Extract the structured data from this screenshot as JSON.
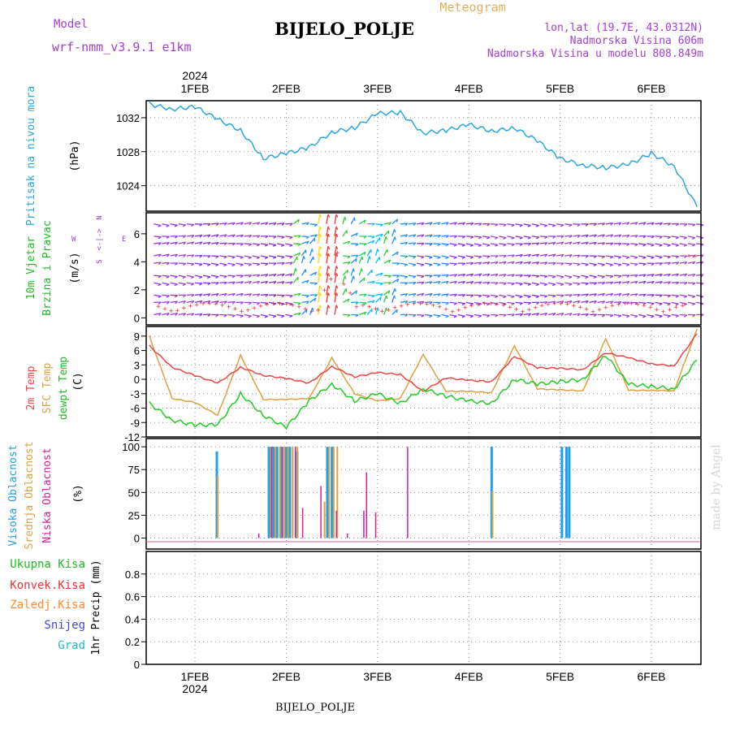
{
  "header": {
    "model_label": "Model",
    "model_name": "wrf-nmm_v3.9.1  e1km",
    "meteogram_label": "Meteogram",
    "station": "BIJELO_POLJE",
    "coords": "lon,lat (19.7E, 43.0312N)",
    "altitude": "Nadmorska Visina 606m",
    "model_altitude": "Nadmorska Visina u modelu 808.849m",
    "watermark": "made by Angel",
    "footer_station": "BIJELO_POLJE"
  },
  "colors": {
    "pressure": "#29a8e0",
    "temp2m": "#ee4444",
    "sfc": "#dfa040",
    "dewpt": "#22cc22",
    "high_cloud": "#20a0e8",
    "mid_cloud": "#dfa040",
    "low_cloud": "#d0209a",
    "purple": "#a040d0",
    "total": "#22bb22",
    "conv": "#ee3333",
    "frozen": "#ff8833",
    "snow": "#4444dd",
    "grad": "#22bbbb"
  },
  "time_axis": {
    "year_label": "2024",
    "day_labels": [
      "1FEB",
      "2FEB",
      "3FEB",
      "4FEB",
      "5FEB",
      "6FEB"
    ]
  },
  "panels": {
    "pressure": {
      "title": "Pritisak na nivou mora",
      "unit": "(hPa)",
      "ticks": [
        "1032",
        "1028",
        "1024"
      ]
    },
    "wind": {
      "title1": "10m Vjetar",
      "title2": "Brzina i Pravac",
      "unit": "(m/s)",
      "compass_n": "N",
      "compass_s": "S",
      "compass_w": "W",
      "compass_e": "E",
      "compass_core": "<-|->",
      "ticks": [
        "6",
        "4",
        "2",
        "0"
      ]
    },
    "temperature": {
      "title_2m": "2m Temp",
      "title_sfc": "SFC Temp",
      "title_dew": "dewpt Temp",
      "unit": "(C)",
      "ticks": [
        "9",
        "6",
        "3",
        "0",
        "-3",
        "-6",
        "-9",
        "-12"
      ]
    },
    "clouds": {
      "title_high": "Visoka Oblacnost",
      "title_mid": "Srednja Oblacnost",
      "title_low": "Niska Oblacnost",
      "unit": "(%)",
      "ticks": [
        "100",
        "75",
        "50",
        "25",
        "0"
      ]
    },
    "precip": {
      "legend_total": "Ukupna Kisa",
      "legend_conv": "Konvek.Kisa",
      "legend_frozen": "Zaledj.Kisa",
      "legend_snow": "Snijeg",
      "legend_grad": "Grad",
      "unit": "1hr Precip (mm)",
      "ticks": [
        "0.8",
        "0.6",
        "0.4",
        "0.2",
        "0"
      ]
    }
  },
  "chart_data": [
    {
      "type": "line",
      "panel": "pressure",
      "x": [
        0.5,
        0.75,
        1.0,
        1.25,
        1.5,
        1.75,
        2.0,
        2.25,
        2.5,
        2.75,
        3.0,
        3.25,
        3.5,
        3.75,
        4.0,
        4.25,
        4.5,
        4.75,
        5.0,
        5.25,
        5.5,
        5.75,
        6.0,
        6.25,
        6.5
      ],
      "ylim": [
        1021,
        1034
      ],
      "series": [
        {
          "values": [
            1033.6,
            1033.0,
            1033.3,
            1031.8,
            1030.5,
            1027.2,
            1027.8,
            1028.5,
            1030.3,
            1030.8,
            1032.5,
            1032.6,
            1030.2,
            1030.5,
            1031.2,
            1030.4,
            1030.8,
            1029.3,
            1027.2,
            1026.4,
            1026.1,
            1026.5,
            1027.8,
            1026.3,
            1021.5
          ]
        }
      ]
    },
    {
      "type": "line",
      "panel": "temperature",
      "x": [
        0.5,
        0.75,
        1.0,
        1.25,
        1.5,
        1.75,
        2.0,
        2.25,
        2.5,
        2.75,
        3.0,
        3.25,
        3.5,
        3.75,
        4.0,
        4.25,
        4.5,
        4.75,
        5.0,
        5.25,
        5.5,
        5.75,
        6.0,
        6.25,
        6.5
      ],
      "ylim": [
        -12,
        11
      ],
      "series": [
        {
          "name": "2m Temp",
          "values": [
            7,
            2.5,
            0.8,
            -0.8,
            2.5,
            0.8,
            0.2,
            -0.8,
            2.7,
            0.5,
            1.4,
            1.0,
            -2.5,
            0.3,
            -0.2,
            -0.5,
            4.8,
            2.4,
            2.3,
            2.0,
            5.5,
            4.5,
            3.2,
            2.8,
            9.5
          ]
        },
        {
          "name": "SFC Temp",
          "values": [
            9,
            -4.0,
            -4.8,
            -7.5,
            5.0,
            -4.2,
            -4.2,
            -4.0,
            4.5,
            -3.0,
            -4.5,
            -4.0,
            5.2,
            -2.5,
            -2.5,
            -2.8,
            7.0,
            -2.0,
            -2.2,
            -2.4,
            8.5,
            -2.3,
            -2.3,
            -2.4,
            10.5
          ]
        },
        {
          "name": "dewpt Temp",
          "values": [
            -5,
            -8.5,
            -9.5,
            -9.5,
            -3.0,
            -7.5,
            -10.0,
            -4.5,
            -1.0,
            -4.5,
            -3.0,
            -5.0,
            -2.0,
            -3.5,
            -4.5,
            -5.0,
            0.0,
            -1.0,
            -0.5,
            0.0,
            5.0,
            -1.0,
            -1.5,
            -2.0,
            4.0
          ]
        }
      ]
    },
    {
      "type": "bar",
      "panel": "clouds",
      "ylim": [
        0,
        100
      ],
      "series": [
        {
          "name": "Visoka Oblacnost",
          "x": [
            1.24,
            1.81,
            1.86,
            1.9,
            1.95,
            2.0,
            2.04,
            2.12,
            2.45,
            2.5,
            4.25,
            5.02,
            5.07,
            5.1
          ],
          "values": [
            95,
            100,
            100,
            100,
            100,
            100,
            100,
            95,
            100,
            100,
            100,
            100,
            100,
            100
          ]
        },
        {
          "name": "Srednja Oblacnost",
          "x": [
            1.25,
            1.83,
            1.88,
            1.93,
            1.98,
            2.02,
            2.07,
            2.12,
            2.42,
            2.47,
            2.52,
            2.56,
            4.26
          ],
          "values": [
            68,
            100,
            100,
            100,
            100,
            100,
            100,
            100,
            40,
            100,
            100,
            100,
            52
          ]
        },
        {
          "name": "Niska Oblacnost",
          "x": [
            1.7,
            1.84,
            1.96,
            2.1,
            2.18,
            2.38,
            2.55,
            2.67,
            2.85,
            2.88,
            2.98,
            3.33
          ],
          "values": [
            5,
            100,
            100,
            100,
            33,
            57,
            30,
            5,
            30,
            72,
            28,
            100
          ]
        }
      ]
    },
    {
      "type": "bar",
      "panel": "precip",
      "ylim": [
        0,
        1
      ],
      "series": [
        {
          "name": "Ukupna Kisa",
          "values": []
        },
        {
          "name": "Konvek.Kisa",
          "values": []
        },
        {
          "name": "Zaledj.Kisa",
          "values": []
        },
        {
          "name": "Snijeg",
          "values": []
        },
        {
          "name": "Grad",
          "values": []
        }
      ]
    }
  ]
}
